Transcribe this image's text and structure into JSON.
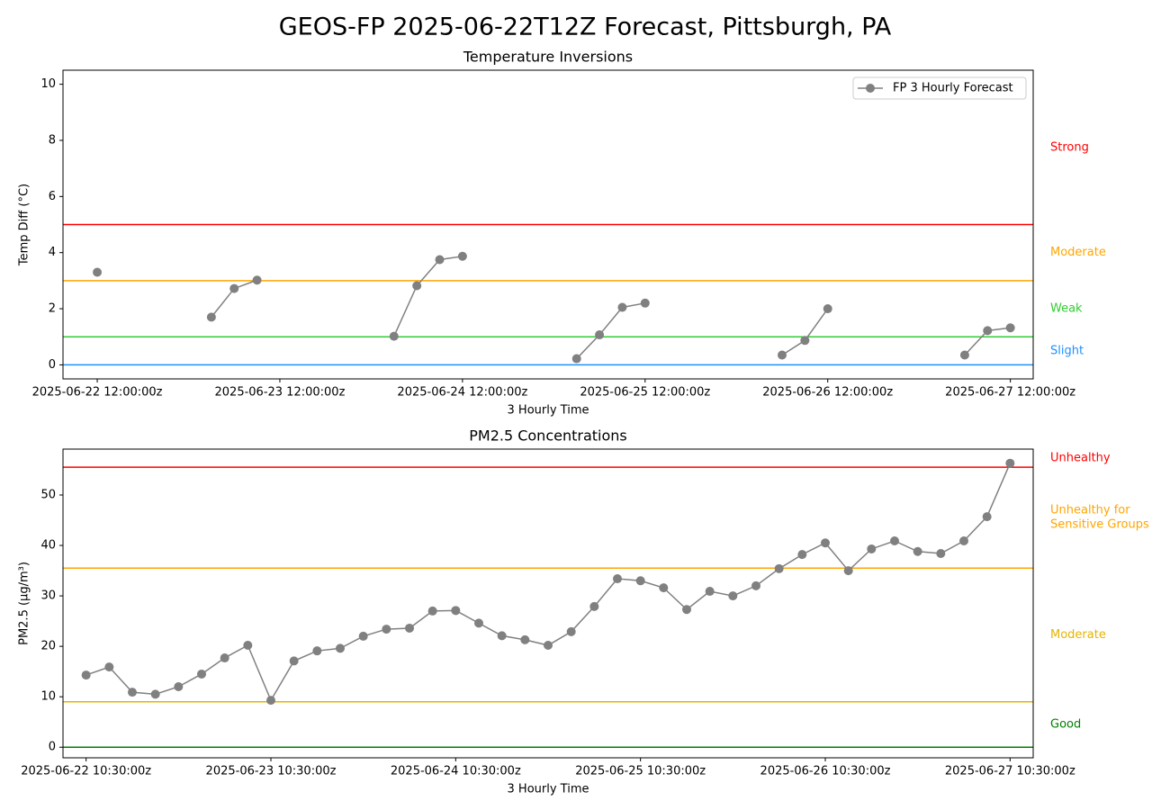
{
  "title": "GEOS-FP 2025-06-22T12Z Forecast, Pittsburgh, PA",
  "chart_data": [
    {
      "type": "line",
      "title": "Temperature Inversions",
      "xlabel": "3 Hourly Time",
      "ylabel": "Temp Diff (°C)",
      "x": [
        "2025-06-22 12:00:00z",
        "2025-06-22 15:00:00z",
        "2025-06-22 18:00:00z",
        "2025-06-22 21:00:00z",
        "2025-06-23 00:00:00z",
        "2025-06-23 03:00:00z",
        "2025-06-23 06:00:00z",
        "2025-06-23 09:00:00z",
        "2025-06-23 12:00:00z",
        "2025-06-23 15:00:00z",
        "2025-06-23 18:00:00z",
        "2025-06-23 21:00:00z",
        "2025-06-24 00:00:00z",
        "2025-06-24 03:00:00z",
        "2025-06-24 06:00:00z",
        "2025-06-24 09:00:00z",
        "2025-06-24 12:00:00z",
        "2025-06-24 15:00:00z",
        "2025-06-24 18:00:00z",
        "2025-06-24 21:00:00z",
        "2025-06-25 00:00:00z",
        "2025-06-25 03:00:00z",
        "2025-06-25 06:00:00z",
        "2025-06-25 09:00:00z",
        "2025-06-25 12:00:00z",
        "2025-06-25 15:00:00z",
        "2025-06-25 18:00:00z",
        "2025-06-25 21:00:00z",
        "2025-06-26 00:00:00z",
        "2025-06-26 03:00:00z",
        "2025-06-26 06:00:00z",
        "2025-06-26 09:00:00z",
        "2025-06-26 12:00:00z",
        "2025-06-26 15:00:00z",
        "2025-06-26 18:00:00z",
        "2025-06-26 21:00:00z",
        "2025-06-27 00:00:00z",
        "2025-06-27 03:00:00z",
        "2025-06-27 06:00:00z",
        "2025-06-27 09:00:00z",
        "2025-06-27 12:00:00z"
      ],
      "series": [
        {
          "name": "FP 3 Hourly Forecast",
          "color": "#808080",
          "values": [
            3.3,
            null,
            null,
            null,
            null,
            1.7,
            2.72,
            3.02,
            null,
            null,
            null,
            null,
            null,
            1.02,
            2.82,
            3.75,
            3.87,
            null,
            null,
            null,
            null,
            0.22,
            1.07,
            2.05,
            2.2,
            null,
            null,
            null,
            null,
            null,
            0.35,
            0.87,
            2.0,
            null,
            null,
            null,
            null,
            null,
            0.35,
            1.22,
            1.32
          ]
        }
      ],
      "xlim": [
        "2025-06-22 07:30:00z",
        "2025-06-27 15:00:00z"
      ],
      "xticks": [
        "2025-06-22 12:00:00z",
        "2025-06-23 12:00:00z",
        "2025-06-24 12:00:00z",
        "2025-06-25 12:00:00z",
        "2025-06-26 12:00:00z",
        "2025-06-27 12:00:00z"
      ],
      "ylim": [
        -0.5,
        10.5
      ],
      "yticks": [
        0,
        2,
        4,
        6,
        8,
        10
      ],
      "thresholds": [
        {
          "value": 5,
          "color": "#ff0000",
          "label": "Strong"
        },
        {
          "value": 3,
          "color": "#ffa500",
          "label": "Moderate"
        },
        {
          "value": 1,
          "color": "#32cd32",
          "label": "Weak"
        },
        {
          "value": 0,
          "color": "#1e90ff",
          "label": "Slight"
        }
      ],
      "legend": "upper right"
    },
    {
      "type": "line",
      "title": "PM2.5 Concentrations",
      "xlabel": "3 Hourly Time",
      "ylabel": "PM2.5 (μg/m³)",
      "x": [
        "2025-06-22 10:30:00z",
        "2025-06-22 13:30:00z",
        "2025-06-22 16:30:00z",
        "2025-06-22 19:30:00z",
        "2025-06-22 22:30:00z",
        "2025-06-23 01:30:00z",
        "2025-06-23 04:30:00z",
        "2025-06-23 07:30:00z",
        "2025-06-23 10:30:00z",
        "2025-06-23 13:30:00z",
        "2025-06-23 16:30:00z",
        "2025-06-23 19:30:00z",
        "2025-06-23 22:30:00z",
        "2025-06-24 01:30:00z",
        "2025-06-24 04:30:00z",
        "2025-06-24 07:30:00z",
        "2025-06-24 10:30:00z",
        "2025-06-24 13:30:00z",
        "2025-06-24 16:30:00z",
        "2025-06-24 19:30:00z",
        "2025-06-24 22:30:00z",
        "2025-06-25 01:30:00z",
        "2025-06-25 04:30:00z",
        "2025-06-25 07:30:00z",
        "2025-06-25 10:30:00z",
        "2025-06-25 13:30:00z",
        "2025-06-25 16:30:00z",
        "2025-06-25 19:30:00z",
        "2025-06-25 22:30:00z",
        "2025-06-26 01:30:00z",
        "2025-06-26 04:30:00z",
        "2025-06-26 07:30:00z",
        "2025-06-26 10:30:00z",
        "2025-06-26 13:30:00z",
        "2025-06-26 16:30:00z",
        "2025-06-26 19:30:00z",
        "2025-06-26 22:30:00z",
        "2025-06-27 01:30:00z",
        "2025-06-27 04:30:00z",
        "2025-06-27 07:30:00z",
        "2025-06-27 10:30:00z"
      ],
      "series": [
        {
          "color": "#808080",
          "values": [
            14.3,
            15.9,
            10.9,
            10.5,
            12.0,
            14.5,
            17.7,
            20.2,
            9.3,
            17.1,
            19.1,
            19.6,
            22.0,
            23.4,
            23.6,
            27.0,
            27.1,
            24.6,
            22.1,
            21.3,
            20.2,
            22.9,
            27.9,
            33.4,
            33.0,
            31.6,
            27.3,
            30.9,
            30.0,
            32.0,
            35.4,
            38.2,
            40.5,
            35.0,
            39.3,
            40.9,
            38.8,
            38.4,
            40.9,
            45.7,
            56.3
          ]
        }
      ],
      "xlim": [
        "2025-06-22 07:30:00z",
        "2025-06-27 13:30:00z"
      ],
      "xticks": [
        "2025-06-22 10:30:00z",
        "2025-06-23 10:30:00z",
        "2025-06-24 10:30:00z",
        "2025-06-25 10:30:00z",
        "2025-06-26 10:30:00z",
        "2025-06-27 10:30:00z"
      ],
      "ylim": [
        -2.1,
        59.1
      ],
      "yticks": [
        0,
        10,
        20,
        30,
        40,
        50
      ],
      "thresholds": [
        {
          "value": 55.5,
          "color": "#ff0000",
          "label": "Unhealthy"
        },
        {
          "value": 35.5,
          "color": "#ffa500",
          "label": [
            "Unhealthy for",
            "Sensitive Groups"
          ]
        },
        {
          "value": 9,
          "color": "#e6b400",
          "label": "Moderate"
        },
        {
          "value": 0,
          "color": "#008000",
          "label": "Good"
        }
      ]
    }
  ]
}
